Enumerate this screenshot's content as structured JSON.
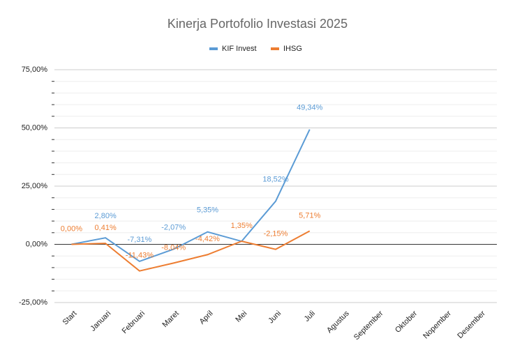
{
  "chart_data": {
    "type": "line",
    "title": "Kinerja Portofolio Investasi 2025",
    "categories": [
      "Start",
      "Januari",
      "Februari",
      "Maret",
      "April",
      "Mei",
      "Juni",
      "Juli",
      "Agustus",
      "September",
      "Oktober",
      "Nopember",
      "Desember"
    ],
    "series": [
      {
        "name": "KIF Invest",
        "color": "#5b9bd5",
        "values": [
          0,
          2.8,
          -7.31,
          -2.07,
          5.35,
          1.3,
          18.52,
          49.34,
          null,
          null,
          null,
          null,
          null
        ],
        "value_labels": [
          null,
          "2,80%",
          "-7,31%",
          "-2,07%",
          "5,35%",
          null,
          "18,52%",
          "49,34%",
          null,
          null,
          null,
          null,
          null
        ]
      },
      {
        "name": "IHSG",
        "color": "#ed7d31",
        "values": [
          0,
          0.41,
          -11.43,
          -8.04,
          -4.42,
          1.35,
          -2.15,
          5.71,
          null,
          null,
          null,
          null,
          null
        ],
        "value_labels": [
          "0,00%",
          "0,41%",
          "-11,43%",
          "-8,04%",
          "-4,42%",
          "1,35%",
          "-2,15%",
          "5,71%",
          null,
          null,
          null,
          null,
          null
        ]
      }
    ],
    "ylim": [
      -25,
      75
    ],
    "yticks": [
      {
        "value": -25,
        "label": "-25,00%"
      },
      {
        "value": 0,
        "label": "0,00%"
      },
      {
        "value": 25,
        "label": "25,00%"
      },
      {
        "value": 50,
        "label": "50,00%"
      },
      {
        "value": 75,
        "label": "75,00%"
      }
    ],
    "minor_yticks": [
      -20,
      -15,
      -10,
      -5,
      5,
      10,
      15,
      20,
      30,
      35,
      40,
      45,
      55,
      60,
      65,
      70
    ],
    "grid": true,
    "legend": "top"
  }
}
